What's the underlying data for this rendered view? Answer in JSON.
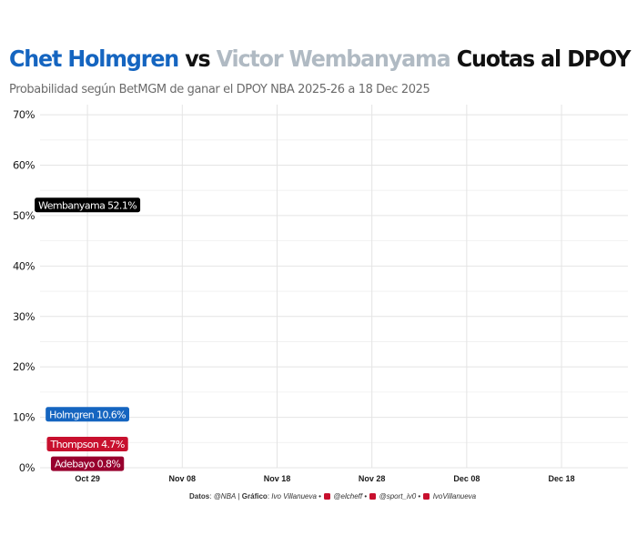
{
  "title": {
    "name1": "Chet Holmgren",
    "vs": " vs ",
    "name2": "Victor Wembanyama",
    "rest": " Cuotas al DPOY",
    "color1": "#1565c0",
    "color2": "#b0bac3",
    "color_rest": "#111111"
  },
  "subtitle": "Probabilidad según BetMGM de ganar el DPOY NBA 2025-26 a 18 Dec 2025",
  "caption": {
    "datos_label": "Datos",
    "datos_value": "@NBA",
    "grafico_label": "Gráfico",
    "grafico_value": "Ivo Villanueva",
    "handle_x": "@elcheff",
    "handle_ig": "@sport_iv0",
    "handle_yt": "IvoVillanueva",
    "x_icon": "x-icon",
    "instagram_icon": "instagram-icon",
    "youtube_icon": "youtube-icon",
    "icon_color": "#c8102e"
  },
  "chart_data": {
    "type": "line",
    "title": "Chet Holmgren vs Victor Wembanyama Cuotas al DPOY",
    "subtitle": "Probabilidad según BetMGM de ganar el DPOY NBA 2025-26 a 18 Dec 2025",
    "xlabel": "",
    "ylabel": "",
    "x_ticks": [
      "Oct 29",
      "Nov 08",
      "Nov 18",
      "Nov 28",
      "Dec 08",
      "Dec 18"
    ],
    "xlim": [
      "2025-10-24",
      "2025-12-25"
    ],
    "y_ticks": [
      "0%",
      "10%",
      "20%",
      "30%",
      "40%",
      "50%",
      "60%",
      "70%"
    ],
    "ylim": [
      0,
      72
    ],
    "grid": true,
    "series": [
      {
        "name": "Wembanyama",
        "label": "Wembanyama 52.1%",
        "color": "#000000",
        "text_color": "#ffffff",
        "points": [
          {
            "x": "2025-10-29",
            "y": 52.1
          }
        ]
      },
      {
        "name": "Holmgren",
        "label": "Holmgren 10.6%",
        "color": "#1565c0",
        "text_color": "#ffffff",
        "points": [
          {
            "x": "2025-10-29",
            "y": 10.6
          }
        ]
      },
      {
        "name": "Thompson",
        "label": "Thompson 4.7%",
        "color": "#c8102e",
        "text_color": "#ffffff",
        "points": [
          {
            "x": "2025-10-29",
            "y": 4.7
          }
        ]
      },
      {
        "name": "Adebayo",
        "label": "Adebayo 0.8%",
        "color": "#98002e",
        "text_color": "#ffffff",
        "points": [
          {
            "x": "2025-10-29",
            "y": 0.8
          }
        ]
      }
    ]
  }
}
